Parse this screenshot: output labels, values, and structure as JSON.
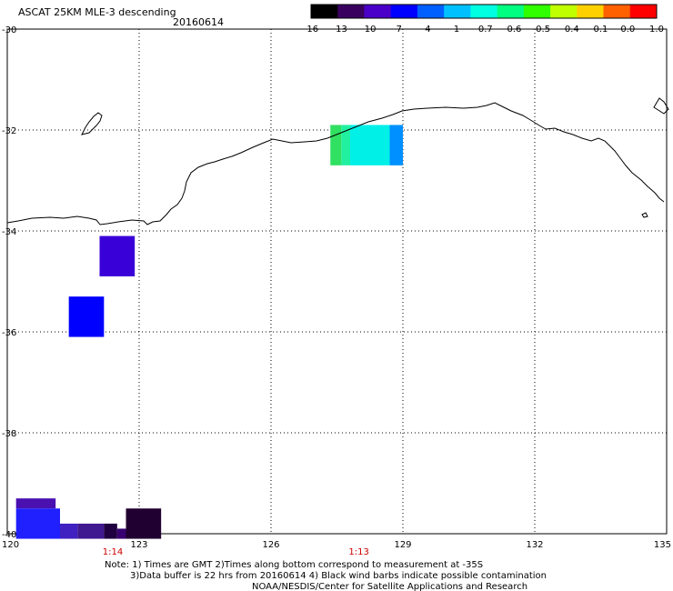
{
  "title": "ASCAT 25KM MLE-3 descending",
  "date": "20160614",
  "colorbar": {
    "labels": [
      "-16",
      "-13",
      "-10",
      "-7",
      "-4",
      "-1",
      "-0.7",
      "-0.6",
      "-0.5",
      "-0.4",
      "-0.1",
      "0.0",
      "1.0"
    ],
    "colors": [
      "#000000",
      "#3a0060",
      "#4a00c8",
      "#0000ff",
      "#0060ff",
      "#00c0ff",
      "#00ffe0",
      "#00ff80",
      "#30ff00",
      "#c0ff00",
      "#ffd000",
      "#ff6000",
      "#ff0000"
    ]
  },
  "axes": {
    "lon_ticks": [
      "120",
      "123",
      "126",
      "129",
      "132",
      "135"
    ],
    "lat_ticks": [
      "-30",
      "-32",
      "-34",
      "-36",
      "-38",
      "-40"
    ],
    "lon_range": [
      120,
      135
    ],
    "lat_range": [
      -30,
      -40
    ]
  },
  "pass_times": [
    {
      "label": "1:14",
      "lon": 122.4
    },
    {
      "label": "1:13",
      "lon": 128.0
    }
  ],
  "cells": [
    {
      "lon": [
        127.35,
        127.6
      ],
      "lat": [
        -31.9,
        -32.7
      ],
      "color": "#30e060"
    },
    {
      "lon": [
        127.6,
        127.8
      ],
      "lat": [
        -31.9,
        -32.7
      ],
      "color": "#20f0a0"
    },
    {
      "lon": [
        127.8,
        128.7
      ],
      "lat": [
        -31.9,
        -32.7
      ],
      "color": "#00f0e8"
    },
    {
      "lon": [
        128.7,
        129.0
      ],
      "lat": [
        -31.9,
        -32.7
      ],
      "color": "#0090ff"
    },
    {
      "lon": [
        122.1,
        122.9
      ],
      "lat": [
        -34.1,
        -34.9
      ],
      "color": "#3a00d8"
    },
    {
      "lon": [
        121.4,
        122.2
      ],
      "lat": [
        -35.3,
        -36.1
      ],
      "color": "#0000ff"
    },
    {
      "lon": [
        120.2,
        121.1
      ],
      "lat": [
        -39.3,
        -39.5
      ],
      "color": "#4a10b0"
    },
    {
      "lon": [
        120.2,
        121.2
      ],
      "lat": [
        -39.5,
        -40.1
      ],
      "color": "#2020ff"
    },
    {
      "lon": [
        121.2,
        121.6
      ],
      "lat": [
        -39.8,
        -40.1
      ],
      "color": "#4020c0"
    },
    {
      "lon": [
        121.6,
        122.2
      ],
      "lat": [
        -39.8,
        -40.1
      ],
      "color": "#401890"
    },
    {
      "lon": [
        122.2,
        122.5
      ],
      "lat": [
        -39.8,
        -40.1
      ],
      "color": "#200040"
    },
    {
      "lon": [
        122.5,
        122.7
      ],
      "lat": [
        -39.9,
        -40.1
      ],
      "color": "#380070"
    },
    {
      "lon": [
        122.7,
        123.5
      ],
      "lat": [
        -39.5,
        -40.1
      ],
      "color": "#200030"
    }
  ],
  "footer": {
    "line1": "Note: 1) Times are GMT 2)Times along bottom correspond to measurement at -35S",
    "line2": "3)Data buffer is 22 hrs from 20160614 4) Black wind barbs indicate possible contamination",
    "line3": "NOAA/NESDIS/Center for Satellite Applications and Research"
  }
}
